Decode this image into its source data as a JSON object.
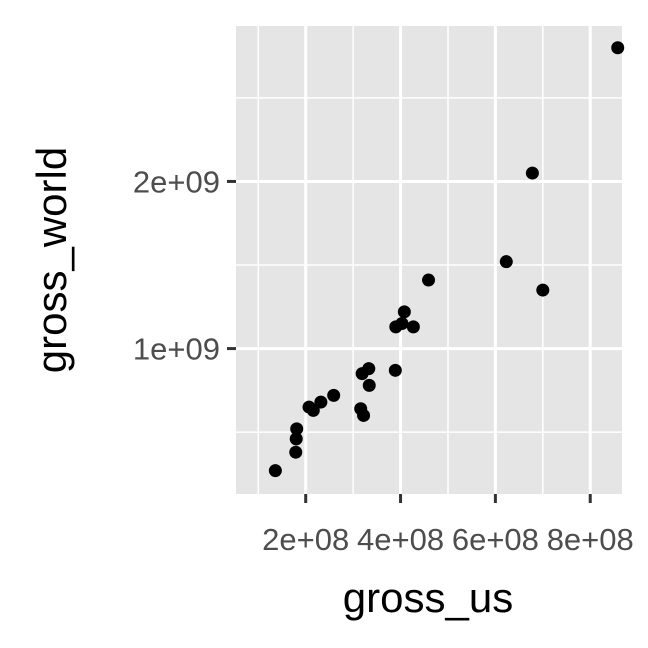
{
  "chart_data": {
    "type": "scatter",
    "title": "",
    "xlabel": "gross_us",
    "ylabel": "gross_world",
    "xlim": [
      53000000,
      867000000
    ],
    "ylim": [
      130000000,
      2930000000
    ],
    "x_ticks": [
      200000000,
      400000000,
      600000000,
      800000000
    ],
    "x_tick_labels": [
      "2e+08",
      "4e+08",
      "6e+08",
      "8e+08"
    ],
    "y_ticks": [
      1000000000,
      2000000000
    ],
    "y_tick_labels": [
      "1e+09",
      "2e+09"
    ],
    "grid": true,
    "legend": "none",
    "colors": {
      "panel": "#e5e5e5",
      "grid": "#ffffff",
      "point": "#000000",
      "tick_text": "#4d4d4d",
      "title_text": "#000000"
    },
    "points": [
      {
        "x": 136000000,
        "y": 270000000
      },
      {
        "x": 179000000,
        "y": 380000000
      },
      {
        "x": 180000000,
        "y": 460000000
      },
      {
        "x": 181000000,
        "y": 520000000
      },
      {
        "x": 207000000,
        "y": 650000000
      },
      {
        "x": 216000000,
        "y": 630000000
      },
      {
        "x": 232000000,
        "y": 680000000
      },
      {
        "x": 259000000,
        "y": 720000000
      },
      {
        "x": 316000000,
        "y": 640000000
      },
      {
        "x": 319000000,
        "y": 850000000
      },
      {
        "x": 322000000,
        "y": 600000000
      },
      {
        "x": 333000000,
        "y": 880000000
      },
      {
        "x": 334000000,
        "y": 780000000
      },
      {
        "x": 389000000,
        "y": 870000000
      },
      {
        "x": 390000000,
        "y": 1130000000
      },
      {
        "x": 403000000,
        "y": 1150000000
      },
      {
        "x": 408000000,
        "y": 1220000000
      },
      {
        "x": 427000000,
        "y": 1130000000
      },
      {
        "x": 459000000,
        "y": 1410000000
      },
      {
        "x": 623000000,
        "y": 1520000000
      },
      {
        "x": 678000000,
        "y": 2050000000
      },
      {
        "x": 700000000,
        "y": 1350000000
      },
      {
        "x": 858000000,
        "y": 2800000000
      }
    ]
  }
}
